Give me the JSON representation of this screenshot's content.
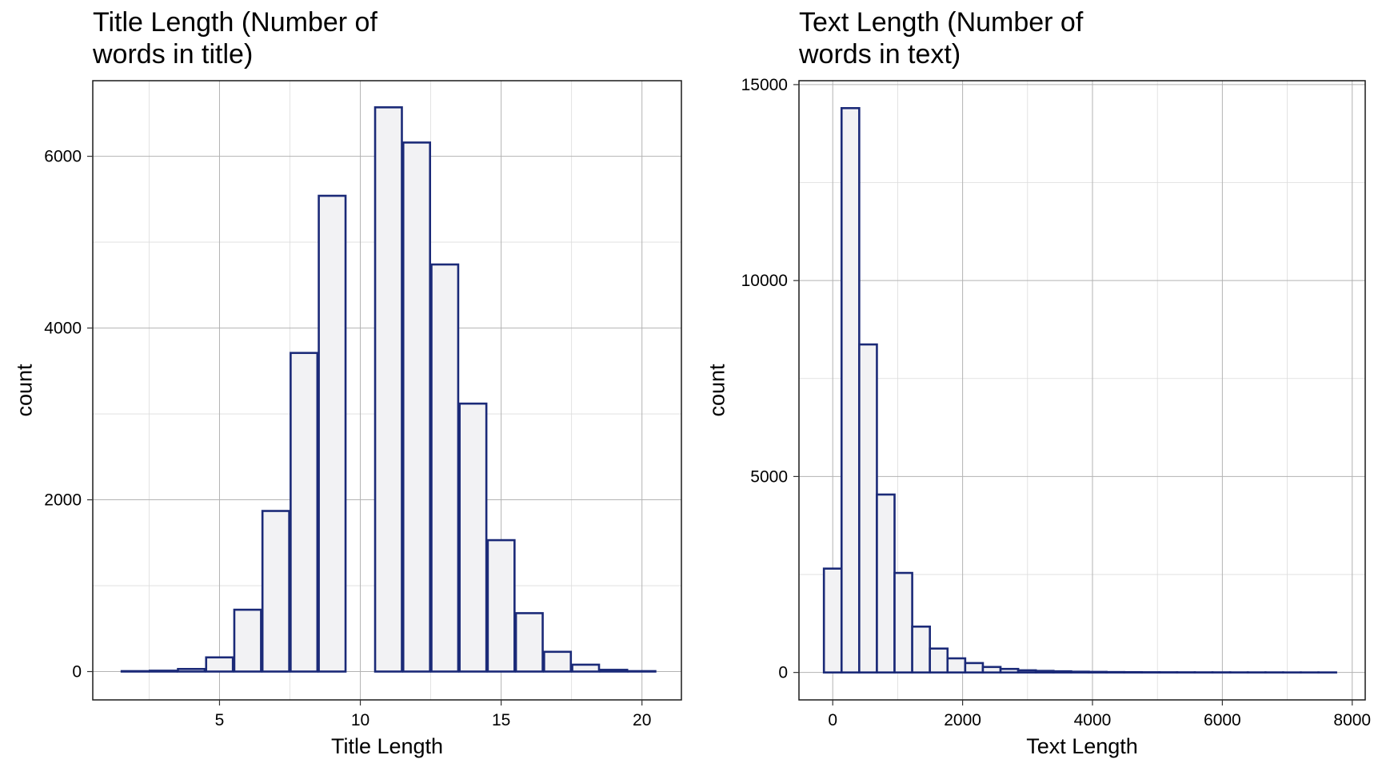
{
  "colors": {
    "bar_fill": "#f2f2f4",
    "bar_outline": "#1b2a78",
    "background": "#ffffff"
  },
  "chart_data": [
    {
      "type": "bar",
      "title_lines": [
        "Title Length (Number of",
        "words in title)"
      ],
      "xlabel": "Title Length",
      "ylabel": "count",
      "xlim": [
        0.5,
        21.4
      ],
      "ylim": [
        -330,
        6880
      ],
      "x_ticks": [
        5,
        10,
        15,
        20
      ],
      "y_ticks": [
        0,
        2000,
        4000,
        6000
      ],
      "grid": true,
      "bin_width": 0.95,
      "x": [
        2,
        3,
        4,
        5,
        6,
        7,
        8,
        9,
        10,
        11,
        12,
        13,
        14,
        15,
        16,
        17,
        18,
        19,
        20
      ],
      "values": [
        5,
        10,
        30,
        165,
        720,
        1870,
        3710,
        5540,
        0,
        6570,
        6160,
        4740,
        3120,
        1530,
        680,
        230,
        80,
        20,
        5
      ]
    },
    {
      "type": "bar",
      "title_lines": [
        "Text Length (Number of",
        "words in text)"
      ],
      "xlabel": "Text Length",
      "ylabel": "count",
      "xlim": [
        -520,
        8200
      ],
      "ylim": [
        -700,
        15100
      ],
      "x_ticks": [
        0,
        2000,
        4000,
        6000,
        8000
      ],
      "y_ticks": [
        0,
        5000,
        10000,
        15000
      ],
      "grid": true,
      "bin_width": 272,
      "x": [
        0,
        272,
        544,
        816,
        1088,
        1360,
        1632,
        1904,
        2176,
        2448,
        2720,
        2992,
        3264,
        3536,
        3808,
        4080,
        4352,
        4624,
        4896,
        5168,
        5440,
        5712,
        5984,
        6256,
        6528,
        6800,
        7072,
        7344,
        7616
      ],
      "values": [
        2650,
        14400,
        8370,
        4540,
        2540,
        1170,
        610,
        360,
        240,
        140,
        90,
        55,
        40,
        30,
        20,
        15,
        10,
        8,
        6,
        5,
        4,
        3,
        3,
        2,
        2,
        2,
        1,
        1,
        1
      ]
    }
  ]
}
